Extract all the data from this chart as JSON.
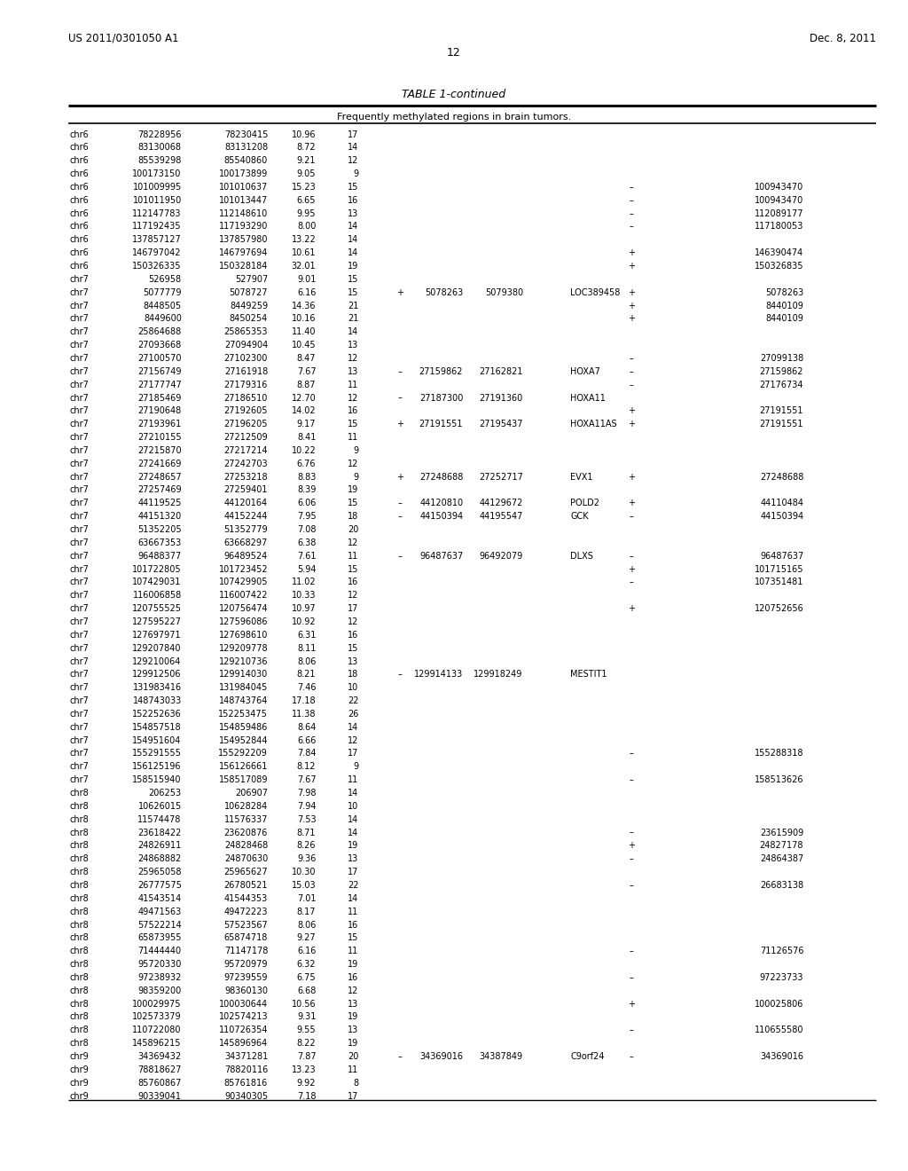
{
  "header_left": "US 2011/0301050 A1",
  "header_right": "Dec. 8, 2011",
  "page_number": "12",
  "table_title": "TABLE 1-continued",
  "table_subtitle": "Frequently methylated regions in brain tumors.",
  "rows": [
    [
      "chr6",
      "78228956",
      "78230415",
      "10.96",
      "17",
      "",
      "",
      "",
      "",
      "",
      "",
      ""
    ],
    [
      "chr6",
      "83130068",
      "83131208",
      "8.72",
      "14",
      "",
      "",
      "",
      "",
      "",
      "",
      ""
    ],
    [
      "chr6",
      "85539298",
      "85540860",
      "9.21",
      "12",
      "",
      "",
      "",
      "",
      "",
      "",
      ""
    ],
    [
      "chr6",
      "100173150",
      "100173899",
      "9.05",
      "9",
      "",
      "",
      "",
      "",
      "",
      "",
      ""
    ],
    [
      "chr6",
      "101009995",
      "101010637",
      "15.23",
      "15",
      "",
      "",
      "",
      "",
      "–",
      "",
      "100943470"
    ],
    [
      "chr6",
      "101011950",
      "101013447",
      "6.65",
      "16",
      "",
      "",
      "",
      "",
      "–",
      "",
      "100943470"
    ],
    [
      "chr6",
      "112147783",
      "112148610",
      "9.95",
      "13",
      "",
      "",
      "",
      "",
      "–",
      "",
      "112089177"
    ],
    [
      "chr6",
      "117192435",
      "117193290",
      "8.00",
      "14",
      "",
      "",
      "",
      "",
      "–",
      "",
      "117180053"
    ],
    [
      "chr6",
      "137857127",
      "137857980",
      "13.22",
      "14",
      "",
      "",
      "",
      "",
      "",
      "",
      ""
    ],
    [
      "chr6",
      "146797042",
      "146797694",
      "10.61",
      "14",
      "",
      "",
      "",
      "",
      "+",
      "",
      "146390474"
    ],
    [
      "chr6",
      "150326335",
      "150328184",
      "32.01",
      "19",
      "",
      "",
      "",
      "",
      "+",
      "",
      "150326835"
    ],
    [
      "chr7",
      "526958",
      "527907",
      "9.01",
      "15",
      "",
      "",
      "",
      "",
      "",
      "",
      ""
    ],
    [
      "chr7",
      "5077779",
      "5078727",
      "6.16",
      "15",
      "+",
      "5078263",
      "5079380",
      "LOC389458",
      "+",
      "",
      "5078263"
    ],
    [
      "chr7",
      "8448505",
      "8449259",
      "14.36",
      "21",
      "",
      "",
      "",
      "",
      "+",
      "",
      "8440109"
    ],
    [
      "chr7",
      "8449600",
      "8450254",
      "10.16",
      "21",
      "",
      "",
      "",
      "",
      "+",
      "",
      "8440109"
    ],
    [
      "chr7",
      "25864688",
      "25865353",
      "11.40",
      "14",
      "",
      "",
      "",
      "",
      "",
      "",
      ""
    ],
    [
      "chr7",
      "27093668",
      "27094904",
      "10.45",
      "13",
      "",
      "",
      "",
      "",
      "",
      "",
      ""
    ],
    [
      "chr7",
      "27100570",
      "27102300",
      "8.47",
      "12",
      "",
      "",
      "",
      "",
      "–",
      "",
      "27099138"
    ],
    [
      "chr7",
      "27156749",
      "27161918",
      "7.67",
      "13",
      "–",
      "27159862",
      "27162821",
      "HOXA7",
      "–",
      "",
      "27159862"
    ],
    [
      "chr7",
      "27177747",
      "27179316",
      "8.87",
      "11",
      "",
      "",
      "",
      "",
      "–",
      "",
      "27176734"
    ],
    [
      "chr7",
      "27185469",
      "27186510",
      "12.70",
      "12",
      "–",
      "27187300",
      "27191360",
      "HOXA11",
      "",
      "",
      ""
    ],
    [
      "chr7",
      "27190648",
      "27192605",
      "14.02",
      "16",
      "",
      "",
      "",
      "",
      "+",
      "",
      "27191551"
    ],
    [
      "chr7",
      "27193961",
      "27196205",
      "9.17",
      "15",
      "+",
      "27191551",
      "27195437",
      "HOXA11AS",
      "+",
      "",
      "27191551"
    ],
    [
      "chr7",
      "27210155",
      "27212509",
      "8.41",
      "11",
      "",
      "",
      "",
      "",
      "",
      "",
      ""
    ],
    [
      "chr7",
      "27215870",
      "27217214",
      "10.22",
      "9",
      "",
      "",
      "",
      "",
      "",
      "",
      ""
    ],
    [
      "chr7",
      "27241669",
      "27242703",
      "6.76",
      "12",
      "",
      "",
      "",
      "",
      "",
      "",
      ""
    ],
    [
      "chr7",
      "27248657",
      "27253218",
      "8.83",
      "9",
      "+",
      "27248688",
      "27252717",
      "EVX1",
      "+",
      "",
      "27248688"
    ],
    [
      "chr7",
      "27257469",
      "27259401",
      "8.39",
      "19",
      "",
      "",
      "",
      "",
      "",
      "",
      ""
    ],
    [
      "chr7",
      "44119525",
      "44120164",
      "6.06",
      "15",
      "–",
      "44120810",
      "44129672",
      "POLD2",
      "+",
      "",
      "44110484"
    ],
    [
      "chr7",
      "44151320",
      "44152244",
      "7.95",
      "18",
      "–",
      "44150394",
      "44195547",
      "GCK",
      "–",
      "",
      "44150394"
    ],
    [
      "chr7",
      "51352205",
      "51352779",
      "7.08",
      "20",
      "",
      "",
      "",
      "",
      "",
      "",
      ""
    ],
    [
      "chr7",
      "63667353",
      "63668297",
      "6.38",
      "12",
      "",
      "",
      "",
      "",
      "",
      "",
      ""
    ],
    [
      "chr7",
      "96488377",
      "96489524",
      "7.61",
      "11",
      "–",
      "96487637",
      "96492079",
      "DLXS",
      "–",
      "",
      "96487637"
    ],
    [
      "chr7",
      "101722805",
      "101723452",
      "5.94",
      "15",
      "",
      "",
      "",
      "",
      "+",
      "",
      "101715165"
    ],
    [
      "chr7",
      "107429031",
      "107429905",
      "11.02",
      "16",
      "",
      "",
      "",
      "",
      "–",
      "",
      "107351481"
    ],
    [
      "chr7",
      "116006858",
      "116007422",
      "10.33",
      "12",
      "",
      "",
      "",
      "",
      "",
      "",
      ""
    ],
    [
      "chr7",
      "120755525",
      "120756474",
      "10.97",
      "17",
      "",
      "",
      "",
      "",
      "+",
      "",
      "120752656"
    ],
    [
      "chr7",
      "127595227",
      "127596086",
      "10.92",
      "12",
      "",
      "",
      "",
      "",
      "",
      "",
      ""
    ],
    [
      "chr7",
      "127697971",
      "127698610",
      "6.31",
      "16",
      "",
      "",
      "",
      "",
      "",
      "",
      ""
    ],
    [
      "chr7",
      "129207840",
      "129209778",
      "8.11",
      "15",
      "",
      "",
      "",
      "",
      "",
      "",
      ""
    ],
    [
      "chr7",
      "129210064",
      "129210736",
      "8.06",
      "13",
      "",
      "",
      "",
      "",
      "",
      "",
      ""
    ],
    [
      "chr7",
      "129912506",
      "129914030",
      "8.21",
      "18",
      "–",
      "129914133",
      "129918249",
      "MESTIT1",
      "",
      "",
      ""
    ],
    [
      "chr7",
      "131983416",
      "131984045",
      "7.46",
      "10",
      "",
      "",
      "",
      "",
      "",
      "",
      ""
    ],
    [
      "chr7",
      "148743033",
      "148743764",
      "17.18",
      "22",
      "",
      "",
      "",
      "",
      "",
      "",
      ""
    ],
    [
      "chr7",
      "152252636",
      "152253475",
      "11.38",
      "26",
      "",
      "",
      "",
      "",
      "",
      "",
      ""
    ],
    [
      "chr7",
      "154857518",
      "154859486",
      "8.64",
      "14",
      "",
      "",
      "",
      "",
      "",
      "",
      ""
    ],
    [
      "chr7",
      "154951604",
      "154952844",
      "6.66",
      "12",
      "",
      "",
      "",
      "",
      "",
      "",
      ""
    ],
    [
      "chr7",
      "155291555",
      "155292209",
      "7.84",
      "17",
      "",
      "",
      "",
      "",
      "–",
      "",
      "155288318"
    ],
    [
      "chr7",
      "156125196",
      "156126661",
      "8.12",
      "9",
      "",
      "",
      "",
      "",
      "",
      "",
      ""
    ],
    [
      "chr7",
      "158515940",
      "158517089",
      "7.67",
      "11",
      "",
      "",
      "",
      "",
      "–",
      "",
      "158513626"
    ],
    [
      "chr8",
      "206253",
      "206907",
      "7.98",
      "14",
      "",
      "",
      "",
      "",
      "",
      "",
      ""
    ],
    [
      "chr8",
      "10626015",
      "10628284",
      "7.94",
      "10",
      "",
      "",
      "",
      "",
      "",
      "",
      ""
    ],
    [
      "chr8",
      "11574478",
      "11576337",
      "7.53",
      "14",
      "",
      "",
      "",
      "",
      "",
      "",
      ""
    ],
    [
      "chr8",
      "23618422",
      "23620876",
      "8.71",
      "14",
      "",
      "",
      "",
      "",
      "–",
      "",
      "23615909"
    ],
    [
      "chr8",
      "24826911",
      "24828468",
      "8.26",
      "19",
      "",
      "",
      "",
      "",
      "+",
      "",
      "24827178"
    ],
    [
      "chr8",
      "24868882",
      "24870630",
      "9.36",
      "13",
      "",
      "",
      "",
      "",
      "–",
      "",
      "24864387"
    ],
    [
      "chr8",
      "25965058",
      "25965627",
      "10.30",
      "17",
      "",
      "",
      "",
      "",
      "",
      "",
      ""
    ],
    [
      "chr8",
      "26777575",
      "26780521",
      "15.03",
      "22",
      "",
      "",
      "",
      "",
      "–",
      "",
      "26683138"
    ],
    [
      "chr8",
      "41543514",
      "41544353",
      "7.01",
      "14",
      "",
      "",
      "",
      "",
      "",
      "",
      ""
    ],
    [
      "chr8",
      "49471563",
      "49472223",
      "8.17",
      "11",
      "",
      "",
      "",
      "",
      "",
      "",
      ""
    ],
    [
      "chr8",
      "57522214",
      "57523567",
      "8.06",
      "16",
      "",
      "",
      "",
      "",
      "",
      "",
      ""
    ],
    [
      "chr8",
      "65873955",
      "65874718",
      "9.27",
      "15",
      "",
      "",
      "",
      "",
      "",
      "",
      ""
    ],
    [
      "chr8",
      "71444440",
      "71147178",
      "6.16",
      "11",
      "",
      "",
      "",
      "",
      "–",
      "",
      "71126576"
    ],
    [
      "chr8",
      "95720330",
      "95720979",
      "6.32",
      "19",
      "",
      "",
      "",
      "",
      "",
      "",
      ""
    ],
    [
      "chr8",
      "97238932",
      "97239559",
      "6.75",
      "16",
      "",
      "",
      "",
      "",
      "–",
      "",
      "97223733"
    ],
    [
      "chr8",
      "98359200",
      "98360130",
      "6.68",
      "12",
      "",
      "",
      "",
      "",
      "",
      "",
      ""
    ],
    [
      "chr8",
      "100029975",
      "100030644",
      "10.56",
      "13",
      "",
      "",
      "",
      "",
      "+",
      "",
      "100025806"
    ],
    [
      "chr8",
      "102573379",
      "102574213",
      "9.31",
      "19",
      "",
      "",
      "",
      "",
      "",
      "",
      ""
    ],
    [
      "chr8",
      "110722080",
      "110726354",
      "9.55",
      "13",
      "",
      "",
      "",
      "",
      "–",
      "",
      "110655580"
    ],
    [
      "chr8",
      "145896215",
      "145896964",
      "8.22",
      "19",
      "",
      "",
      "",
      "",
      "",
      "",
      ""
    ],
    [
      "chr9",
      "34369432",
      "34371281",
      "7.87",
      "20",
      "–",
      "34369016",
      "34387849",
      "C9orf24",
      "–",
      "",
      "34369016"
    ],
    [
      "chr9",
      "78818627",
      "78820116",
      "13.23",
      "11",
      "",
      "",
      "",
      "",
      "",
      "",
      ""
    ],
    [
      "chr9",
      "85760867",
      "85761816",
      "9.92",
      "8",
      "",
      "",
      "",
      "",
      "",
      "",
      ""
    ],
    [
      "chr9",
      "90339041",
      "90340305",
      "7.18",
      "17",
      "",
      "",
      "",
      "",
      "",
      "",
      ""
    ]
  ]
}
